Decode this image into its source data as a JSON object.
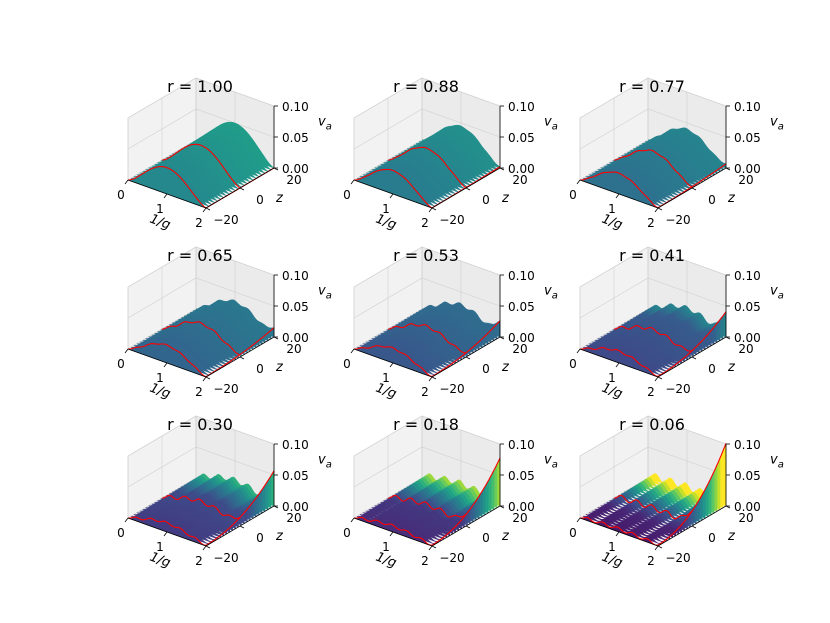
{
  "chart_data": {
    "type": "surface3d",
    "grid": "3x3",
    "xlabel_main": "1/g",
    "ylabel": "z",
    "zlabel_main": "v",
    "zlabel_sub": "a",
    "x_ticks": [
      "0",
      "1",
      "2"
    ],
    "y_ticks": [
      "20",
      "0",
      "−20"
    ],
    "z_ticks": [
      "0.10",
      "0.05",
      "0.00"
    ],
    "x_range": [
      0,
      2
    ],
    "y_range": [
      -20,
      20
    ],
    "z_range": [
      0,
      0.1
    ],
    "colormap": "viridis",
    "edge_curve_color": "#ff0000",
    "panels": [
      {
        "title": "r = 1.00",
        "r": 1.0
      },
      {
        "title": "r = 0.88",
        "r": 0.88
      },
      {
        "title": "r = 0.77",
        "r": 0.77
      },
      {
        "title": "r = 0.65",
        "r": 0.65
      },
      {
        "title": "r = 0.53",
        "r": 0.53
      },
      {
        "title": "r = 0.41",
        "r": 0.41
      },
      {
        "title": "r = 0.30",
        "r": 0.3
      },
      {
        "title": "r = 0.18",
        "r": 0.18
      },
      {
        "title": "r = 0.06",
        "r": 0.06
      }
    ]
  }
}
